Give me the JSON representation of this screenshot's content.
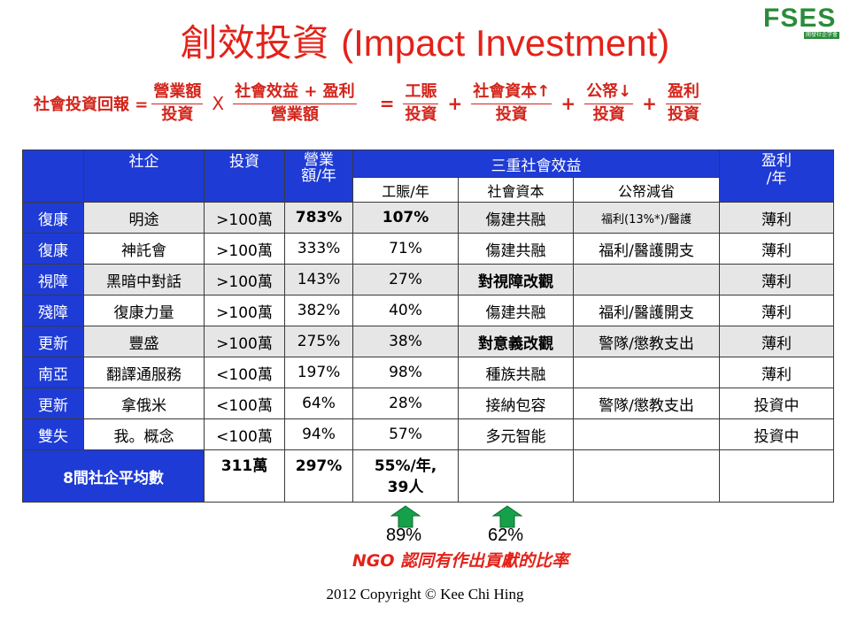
{
  "logo": {
    "text": "FSES",
    "subtitle": "開發社企学會"
  },
  "title": {
    "zh": "創效投資",
    "en": "(Impact Investment)"
  },
  "formula": {
    "lhs": "社會投資回報 =",
    "f1_num": "營業額",
    "f1_den": "投資",
    "times": "X",
    "f2_num": "社會效益 + 盈利",
    "f2_den": "營業額",
    "eq": "=",
    "f3_num": "工賑",
    "f3_den": "投資",
    "plus": "+",
    "f4_num": "社會資本↑",
    "f4_den": "投資",
    "f5_num": "公帑↓",
    "f5_den": "投資",
    "f6_num": "盈利",
    "f6_den": "投資"
  },
  "table": {
    "headers": {
      "social_enterprise": "社企",
      "investment": "投資",
      "revenue": "營業\n額/年",
      "triple_benefit": "三重社會效益",
      "profit": "盈利\n/年",
      "work_relief": "工賑/年",
      "social_capital": "社會資本",
      "public_saving": "公帑減省"
    },
    "rows": [
      {
        "category": "復康",
        "name": "明途",
        "investment": ">100萬",
        "revenue": "783%",
        "relief": "107%",
        "capital": "傷建共融",
        "saving": "福利(13%*)/醫護",
        "profit": "薄利"
      },
      {
        "category": "復康",
        "name": "神託會",
        "investment": ">100萬",
        "revenue": "333%",
        "relief": "71%",
        "capital": "傷建共融",
        "saving": "福利/醫護開支",
        "profit": "薄利"
      },
      {
        "category": "視障",
        "name": "黑暗中對話",
        "investment": ">100萬",
        "revenue": "143%",
        "relief": "27%",
        "capital": "對視障改觀",
        "saving": "",
        "profit": "薄利"
      },
      {
        "category": "殘障",
        "name": "復康力量",
        "investment": ">100萬",
        "revenue": "382%",
        "relief": "40%",
        "capital": "傷建共融",
        "saving": "福利/醫護開支",
        "profit": "薄利"
      },
      {
        "category": "更新",
        "name": "豐盛",
        "investment": ">100萬",
        "revenue": "275%",
        "relief": "38%",
        "capital": "對意義改觀",
        "saving": "警隊/懲教支出",
        "profit": "薄利"
      },
      {
        "category": "南亞",
        "name": "翻譯通服務",
        "investment": "<100萬",
        "revenue": "197%",
        "relief": "98%",
        "capital": "種族共融",
        "saving": "",
        "profit": "薄利"
      },
      {
        "category": "更新",
        "name": "拿俄米",
        "investment": "<100萬",
        "revenue": "64%",
        "relief": "28%",
        "capital": "接納包容",
        "saving": "警隊/懲教支出",
        "profit": "投資中"
      },
      {
        "category": "雙失",
        "name": "我。概念",
        "investment": "<100萬",
        "revenue": "94%",
        "relief": "57%",
        "capital": "多元智能",
        "saving": "",
        "profit": "投資中"
      }
    ],
    "average": {
      "label": "8間社企平均數",
      "investment": "311萬",
      "revenue": "297%",
      "relief": "55%/年,\n39人"
    }
  },
  "recognition": {
    "relief_pct": "89%",
    "capital_pct": "62%",
    "caption": "NGO 認同有作出貢獻的比率"
  },
  "copyright": "2012 Copyright © Kee Chi Hing",
  "colors": {
    "header_blue": "#1e3bd6",
    "title_red": "#e32219",
    "arrow_green": "#15a04a",
    "logo_green": "#2a8c3a"
  }
}
